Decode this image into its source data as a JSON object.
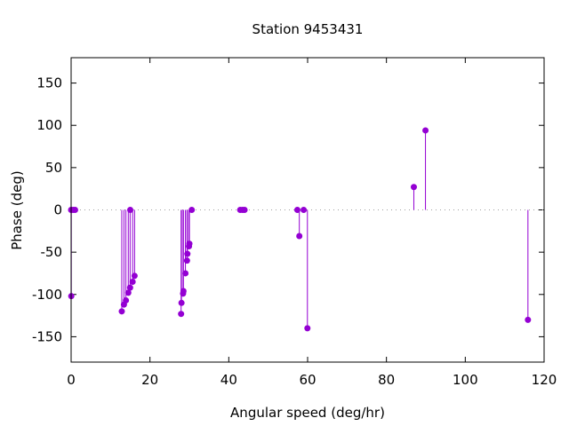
{
  "chart_data": {
    "type": "stem",
    "title": "Station 9453431",
    "xlabel": "Angular speed (deg/hr)",
    "ylabel": "Phase (deg)",
    "xlim": [
      0,
      120
    ],
    "ylim": [
      -180,
      180
    ],
    "xticks": [
      0,
      20,
      40,
      60,
      80,
      100,
      120
    ],
    "yticks": [
      -150,
      -100,
      -50,
      0,
      50,
      100,
      150
    ],
    "color": "#9400d3",
    "zero_line": true,
    "points": [
      [
        0.0,
        0
      ],
      [
        0.04,
        -102
      ],
      [
        0.5,
        0
      ],
      [
        1.0,
        0
      ],
      [
        12.85,
        -120
      ],
      [
        13.4,
        -112
      ],
      [
        13.9,
        -107
      ],
      [
        14.5,
        -98
      ],
      [
        14.96,
        -92
      ],
      [
        15.0,
        0
      ],
      [
        15.6,
        -85
      ],
      [
        16.1,
        -78
      ],
      [
        27.9,
        -123
      ],
      [
        28.0,
        -110
      ],
      [
        28.4,
        -99
      ],
      [
        28.5,
        -96
      ],
      [
        29.0,
        -75
      ],
      [
        29.4,
        -60
      ],
      [
        29.5,
        -52
      ],
      [
        29.9,
        -43
      ],
      [
        30.0,
        -40
      ],
      [
        30.6,
        0
      ],
      [
        42.9,
        0
      ],
      [
        43.5,
        0
      ],
      [
        44.0,
        0
      ],
      [
        57.4,
        0
      ],
      [
        57.9,
        -31
      ],
      [
        59.0,
        0
      ],
      [
        59.95,
        -140
      ],
      [
        86.95,
        27
      ],
      [
        89.9,
        94
      ],
      [
        115.9,
        -130
      ]
    ]
  }
}
